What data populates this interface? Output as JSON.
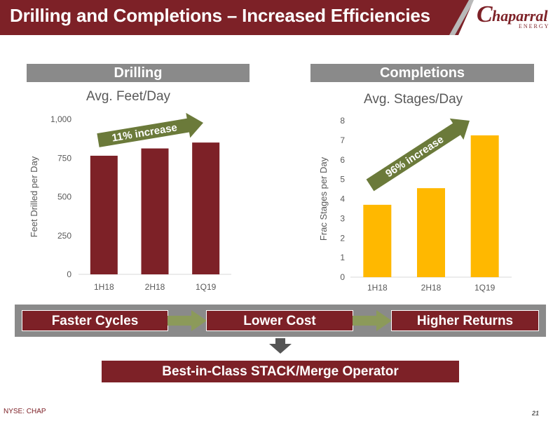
{
  "header": {
    "title": "Drilling and Completions – Increased Efficiencies",
    "logo": {
      "initial": "C",
      "name": "haparral",
      "sub": "ENERGY"
    }
  },
  "colors": {
    "brand": "#7d2127",
    "gray": "#8a8a8a",
    "gold": "#ffb800",
    "axis_text": "#595959"
  },
  "sections": {
    "left": "Drilling",
    "right": "Completions"
  },
  "chart_data": [
    {
      "type": "bar",
      "title": "Avg. Feet/Day",
      "xlabel": "",
      "ylabel": "Feet Drilled per Day",
      "categories": [
        "1H18",
        "2H18",
        "1Q19"
      ],
      "values": [
        765,
        812,
        850
      ],
      "ylim": [
        0,
        1000
      ],
      "yticks": [
        0,
        250,
        500,
        750,
        1000
      ],
      "ytick_labels": [
        "0",
        "250",
        "500",
        "750",
        "1,000"
      ],
      "bar_color": "#7d2127",
      "grid": false,
      "annotation": "11% increase"
    },
    {
      "type": "bar",
      "title": "Avg. Stages/Day",
      "xlabel": "",
      "ylabel": "Frac Stages per Day",
      "categories": [
        "1H18",
        "2H18",
        "1Q19"
      ],
      "values": [
        3.7,
        4.55,
        7.25
      ],
      "ylim": [
        0,
        8
      ],
      "yticks": [
        0,
        1,
        2,
        3,
        4,
        5,
        6,
        7,
        8
      ],
      "ytick_labels": [
        "0",
        "1",
        "2",
        "3",
        "4",
        "5",
        "6",
        "7",
        "8"
      ],
      "bar_color": "#ffb800",
      "grid": false,
      "annotation": "96% increase"
    }
  ],
  "flow": {
    "steps": [
      "Faster Cycles",
      "Lower Cost",
      "Higher Returns"
    ],
    "result": "Best-in-Class STACK/Merge Operator"
  },
  "footer": {
    "ticker": "NYSE: CHAP",
    "page": "21"
  }
}
